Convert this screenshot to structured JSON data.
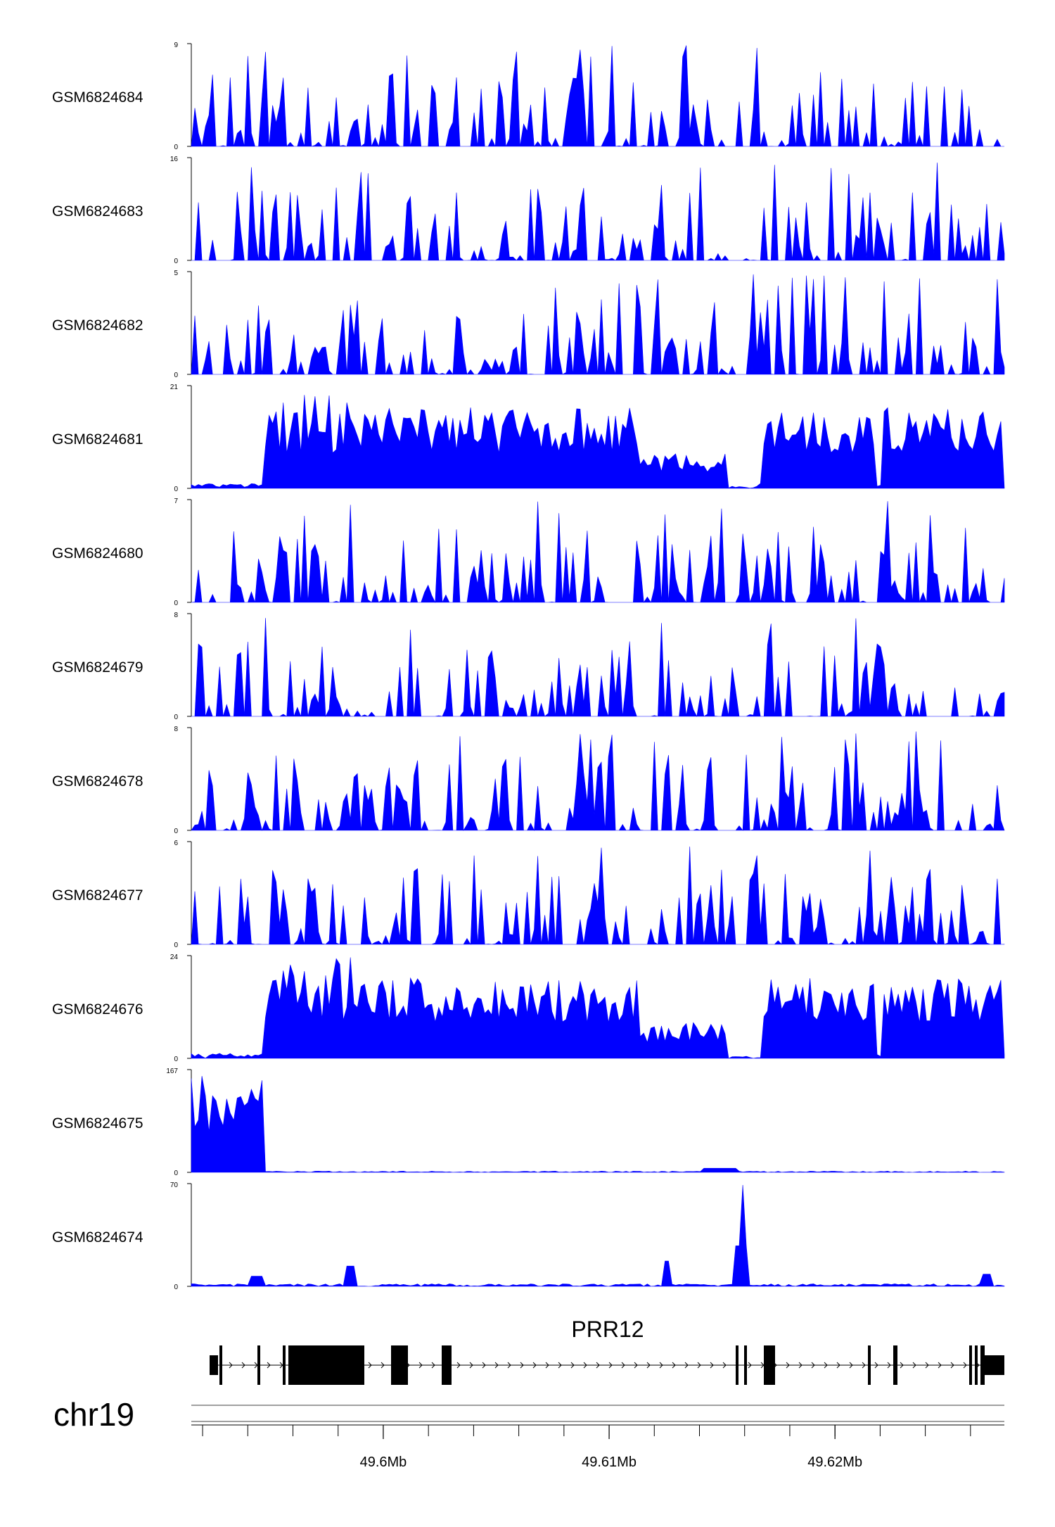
{
  "chart_data": {
    "type": "area",
    "chromosome": "chr19",
    "tracks": [
      {
        "name": "GSM6824684",
        "ymax": "9",
        "ymin": "0"
      },
      {
        "name": "GSM6824683",
        "ymax": "16",
        "ymin": "0"
      },
      {
        "name": "GSM6824682",
        "ymax": "5",
        "ymin": "0"
      },
      {
        "name": "GSM6824681",
        "ymax": "21",
        "ymin": "0"
      },
      {
        "name": "GSM6824680",
        "ymax": "7",
        "ymin": "0"
      },
      {
        "name": "GSM6824679",
        "ymax": "8",
        "ymin": "0"
      },
      {
        "name": "GSM6824678",
        "ymax": "8",
        "ymin": "0"
      },
      {
        "name": "GSM6824677",
        "ymax": "6",
        "ymin": "0"
      },
      {
        "name": "GSM6824676",
        "ymax": "24",
        "ymin": "0"
      },
      {
        "name": "GSM6824675",
        "ymax": "167",
        "ymin": "0"
      },
      {
        "name": "GSM6824674",
        "ymax": "70",
        "ymin": "0"
      }
    ],
    "gene": {
      "name": "PRR12",
      "strand": "+"
    },
    "x_axis": {
      "range_mb": [
        49.5915,
        49.6275
      ],
      "tick_labels": [
        {
          "pos": 49.6,
          "label": "49.6Mb"
        },
        {
          "pos": 49.61,
          "label": "49.61Mb"
        },
        {
          "pos": 49.62,
          "label": "49.62Mb"
        }
      ],
      "minor_ticks_mb": [
        49.592,
        49.594,
        49.596,
        49.598,
        49.6,
        49.602,
        49.604,
        49.606,
        49.608,
        49.61,
        49.612,
        49.614,
        49.616,
        49.618,
        49.62,
        49.622,
        49.624,
        49.626
      ]
    },
    "fill_color": "#0000ff",
    "grid": false
  }
}
